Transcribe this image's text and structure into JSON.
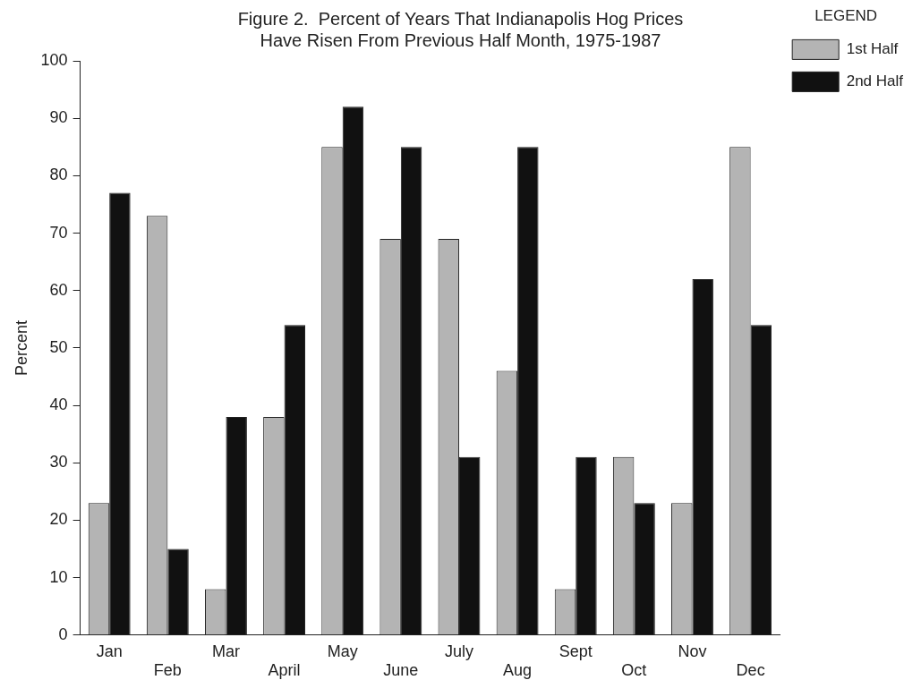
{
  "chart_data": {
    "type": "bar",
    "title": "Figure 2.  Percent of Years That Indianapolis Hog Prices\nHave Risen From Previous Half Month, 1975-1987",
    "ylabel": "Percent",
    "categories": [
      "Jan",
      "Feb",
      "Mar",
      "April",
      "May",
      "June",
      "July",
      "Aug",
      "Sept",
      "Oct",
      "Nov",
      "Dec"
    ],
    "series": [
      {
        "name": "1st Half",
        "color": "#b4b4b4",
        "values": [
          23,
          73,
          8,
          38,
          85,
          69,
          69,
          46,
          8,
          31,
          23,
          85
        ]
      },
      {
        "name": "2nd Half",
        "color": "#111111",
        "values": [
          77,
          15,
          38,
          54,
          92,
          85,
          31,
          85,
          31,
          23,
          62,
          54
        ]
      }
    ],
    "legend_title": "LEGEND",
    "legend": "top right",
    "grid": false,
    "ylim": [
      0,
      100
    ],
    "yticks": [
      0,
      10,
      20,
      30,
      40,
      50,
      60,
      70,
      80,
      90,
      100
    ]
  }
}
